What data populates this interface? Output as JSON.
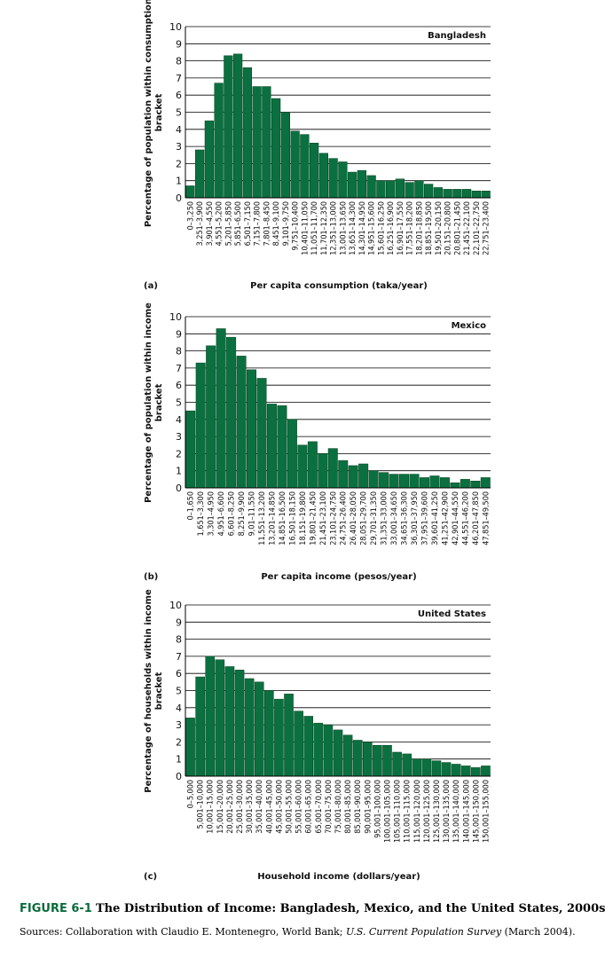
{
  "chart_data": [
    {
      "type": "bar",
      "panel_label": "(a)",
      "title": "Bangladesh",
      "xlabel": "Per capita consumption (taka/year)",
      "ylabel": "Percentage of population within consumption bracket",
      "ylim": [
        0,
        10
      ],
      "yticks": [
        0,
        1,
        2,
        3,
        4,
        5,
        6,
        7,
        8,
        9,
        10
      ],
      "grid": true,
      "categories": [
        "0–3,250",
        "3,251–3,900",
        "3,901–4,550",
        "4,551–5,200",
        "5,201–5,850",
        "5,851–6,500",
        "6,501–7,150",
        "7,151–7,800",
        "7,801–8,450",
        "8,451–9,100",
        "9,101–9,750",
        "9,751–10,400",
        "10,401–11,050",
        "11,051–11,700",
        "11,701–12,350",
        "12,351–13,000",
        "13,001–13,650",
        "13,651–14,300",
        "14,301–14,950",
        "14,951–15,600",
        "15,601–16,250",
        "16,251–16,900",
        "16,901–17,550",
        "17,551–18,200",
        "18,201–18,850",
        "18,851–19,500",
        "19,501–20,150",
        "20,151–20,800",
        "20,801–21,450",
        "21,451–22,100",
        "22,101–22,750",
        "22,751–23,400"
      ],
      "values": [
        0.7,
        2.8,
        4.5,
        6.7,
        8.3,
        8.4,
        7.6,
        6.5,
        6.5,
        5.8,
        5.0,
        3.9,
        3.7,
        3.2,
        2.6,
        2.3,
        2.1,
        1.5,
        1.6,
        1.3,
        1.0,
        1.0,
        1.1,
        0.9,
        1.0,
        0.8,
        0.6,
        0.5,
        0.5,
        0.5,
        0.4,
        0.4
      ]
    },
    {
      "type": "bar",
      "panel_label": "(b)",
      "title": "Mexico",
      "xlabel": "Per capita income (pesos/year)",
      "ylabel": "Percentage of population within income bracket",
      "ylim": [
        0,
        10
      ],
      "yticks": [
        0,
        1,
        2,
        3,
        4,
        5,
        6,
        7,
        8,
        9,
        10
      ],
      "grid": true,
      "categories": [
        "0–1,650",
        "1,651–3,300",
        "3,301–4,950",
        "4,951–6,600",
        "6,601–8,250",
        "8,251–9,900",
        "9,01–11,550",
        "11,551–13,200",
        "13,201–14,850",
        "14,851–16,500",
        "16,501–18,150",
        "18,151–19,800",
        "19,801–21,450",
        "21,451–23,100",
        "23,101–24,750",
        "24,751–26,400",
        "26,401–28,050",
        "28,051–29,700",
        "29,701–31,350",
        "31,351–33,000",
        "33,001–34,650",
        "34,651–36,300",
        "36,301–37,950",
        "37,951–39,600",
        "39,601–41,250",
        "41,251–42,900",
        "42,901–44,550",
        "44,551–46,200",
        "46,201–47,850",
        "47,851–49,500"
      ],
      "values": [
        4.5,
        7.3,
        8.3,
        9.3,
        8.8,
        7.7,
        6.9,
        6.4,
        4.9,
        4.8,
        4.0,
        2.5,
        2.7,
        2.0,
        2.3,
        1.6,
        1.3,
        1.4,
        1.0,
        0.9,
        0.8,
        0.8,
        0.8,
        0.6,
        0.7,
        0.6,
        0.3,
        0.5,
        0.4,
        0.6
      ]
    },
    {
      "type": "bar",
      "panel_label": "(c)",
      "title": "United States",
      "xlabel": "Household income (dollars/year)",
      "ylabel": "Percentage of households within income bracket",
      "ylim": [
        0,
        10
      ],
      "yticks": [
        0,
        1,
        2,
        3,
        4,
        5,
        6,
        7,
        8,
        9,
        10
      ],
      "grid": true,
      "categories": [
        "0–5,000",
        "5,001–10,000",
        "10,001–15,000",
        "15,001–20,000",
        "20,001–25,000",
        "25,001–30,000",
        "30,001–35,000",
        "35,001–40,000",
        "40,001–45,000",
        "45,001–50,000",
        "50,001–55,000",
        "55,001–60,000",
        "60,001–65,000",
        "65,001–70,000",
        "70,001–75,000",
        "75,001–80,000",
        "80,001–85,000",
        "85,001–90,000",
        "90,001–95,000",
        "95,001–100,000",
        "100,001–105,000",
        "105,001–110,000",
        "110,001–115,000",
        "115,001–120,000",
        "120,001–125,000",
        "125,001–130,000",
        "130,001–135,000",
        "135,001–140,000",
        "140,001–145,000",
        "145,001–150,000",
        "150,001–155,000"
      ],
      "values": [
        3.4,
        5.8,
        7.0,
        6.8,
        6.4,
        6.2,
        5.7,
        5.5,
        5.0,
        4.5,
        4.8,
        3.8,
        3.5,
        3.1,
        3.0,
        2.7,
        2.4,
        2.1,
        2.0,
        1.8,
        1.8,
        1.4,
        1.3,
        1.0,
        1.0,
        0.9,
        0.8,
        0.7,
        0.6,
        0.5,
        0.6
      ]
    }
  ],
  "caption": {
    "label": "FIGURE 6-1",
    "title": "The Distribution of Income: Bangladesh, Mexico, and the United States, 2000s",
    "sources_prefix": "Sources: Collaboration with Claudio E. Montenegro, World Bank; ",
    "sources_italic": "U.S. Current Population Survey",
    "sources_suffix": " (March 2004)."
  },
  "colors": {
    "bar_fill": "#0b7040",
    "bar_stroke": "#06401f",
    "grid": "#000000",
    "caption_label": "#0a6a3a"
  }
}
